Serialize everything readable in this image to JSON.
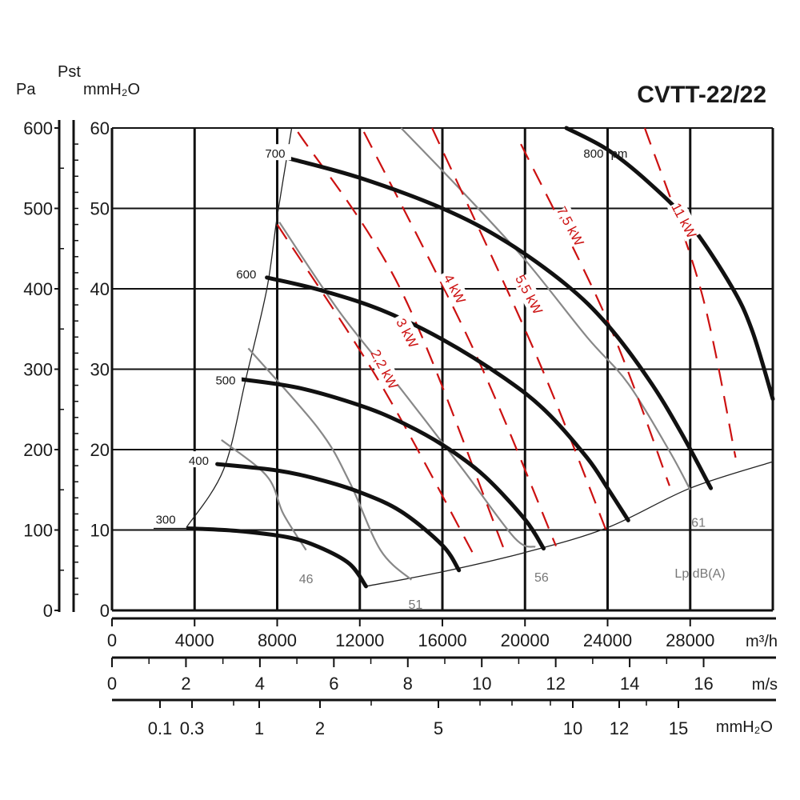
{
  "chart_data": {
    "type": "line",
    "title": "CVTT-22/22",
    "axes": {
      "y_left_pa": {
        "label": "Pa",
        "range": [
          0,
          600
        ],
        "ticks": [
          "0",
          "100",
          "200",
          "300",
          "400",
          "500",
          "600"
        ]
      },
      "y_left_mmh2o": {
        "label": "Pst",
        "unit": "mmH₂O",
        "range": [
          0,
          60
        ],
        "ticks": [
          "0",
          "10",
          "20",
          "30",
          "40",
          "50",
          "60"
        ]
      },
      "x_flow": {
        "unit": "m³/h",
        "range": [
          0,
          32000
        ],
        "ticks": [
          "0",
          "4000",
          "8000",
          "12000",
          "16000",
          "20000",
          "24000",
          "28000"
        ]
      },
      "x_velocity": {
        "unit": "m/s",
        "ticks": [
          "0",
          "2",
          "4",
          "6",
          "8",
          "10",
          "12",
          "14",
          "16"
        ]
      },
      "x_dynamic_pressure": {
        "unit": "mmH₂O",
        "ticks": [
          "0.1",
          "0.3",
          "1",
          "2",
          "5",
          "10",
          "12",
          "15"
        ]
      }
    },
    "grid": true,
    "rpm_curves": [
      {
        "label": "300",
        "points": [
          [
            3700,
            102
          ],
          [
            6000,
            99
          ],
          [
            8500,
            91
          ],
          [
            10000,
            79
          ],
          [
            11500,
            58
          ],
          [
            12300,
            30
          ]
        ]
      },
      {
        "label": "400",
        "points": [
          [
            5100,
            182
          ],
          [
            8000,
            174
          ],
          [
            10000,
            163
          ],
          [
            12000,
            147
          ],
          [
            14000,
            123
          ],
          [
            16000,
            81
          ],
          [
            16800,
            50
          ]
        ]
      },
      {
        "label": "500",
        "points": [
          [
            6100,
            288
          ],
          [
            9000,
            277
          ],
          [
            12000,
            255
          ],
          [
            14000,
            234
          ],
          [
            16000,
            206
          ],
          [
            18000,
            168
          ],
          [
            20000,
            113
          ],
          [
            20900,
            77
          ]
        ]
      },
      {
        "label": "600",
        "points": [
          [
            7500,
            414
          ],
          [
            10000,
            399
          ],
          [
            13000,
            374
          ],
          [
            16000,
            337
          ],
          [
            19000,
            289
          ],
          [
            21000,
            248
          ],
          [
            23000,
            190
          ],
          [
            24000,
            152
          ],
          [
            25000,
            112
          ]
        ]
      },
      {
        "label": "700",
        "points": [
          [
            8600,
            562
          ],
          [
            12000,
            538
          ],
          [
            16000,
            500
          ],
          [
            19000,
            460
          ],
          [
            22000,
            405
          ],
          [
            24000,
            355
          ],
          [
            26000,
            287
          ],
          [
            27500,
            224
          ],
          [
            29000,
            152
          ]
        ]
      },
      {
        "label": "800 rpm",
        "points": [
          [
            22000,
            600
          ],
          [
            24000,
            573
          ],
          [
            26000,
            532
          ],
          [
            28000,
            480
          ],
          [
            30000,
            403
          ],
          [
            31000,
            348
          ],
          [
            32000,
            263
          ]
        ]
      }
    ],
    "power_lines": [
      {
        "label": "2,2 kW",
        "points": [
          [
            8000,
            480
          ],
          [
            13000,
            282
          ],
          [
            17500,
            70
          ]
        ]
      },
      {
        "label": "3 kW",
        "points": [
          [
            9000,
            595
          ],
          [
            14000,
            398
          ],
          [
            19000,
            75
          ]
        ]
      },
      {
        "label": "4 kW",
        "points": [
          [
            12200,
            595
          ],
          [
            17500,
            325
          ],
          [
            21500,
            80
          ]
        ]
      },
      {
        "label": "5,5 kW",
        "points": [
          [
            15500,
            600
          ],
          [
            20500,
            320
          ],
          [
            24000,
            95
          ]
        ]
      },
      {
        "label": "7,5 kW",
        "points": [
          [
            19800,
            580
          ],
          [
            24000,
            360
          ],
          [
            27000,
            155
          ]
        ]
      },
      {
        "label": "11 kW",
        "points": [
          [
            25800,
            600
          ],
          [
            28500,
            400
          ],
          [
            30200,
            190
          ]
        ]
      }
    ],
    "noise_lines": [
      {
        "label": "46",
        "points": [
          [
            5300,
            212
          ],
          [
            7500,
            167
          ],
          [
            8300,
            120
          ],
          [
            9400,
            75
          ]
        ]
      },
      {
        "label": "51",
        "points": [
          [
            6600,
            326
          ],
          [
            10000,
            226
          ],
          [
            11500,
            160
          ],
          [
            13000,
            75
          ],
          [
            14500,
            38
          ]
        ]
      },
      {
        "label": "56",
        "points": [
          [
            8100,
            483
          ],
          [
            11000,
            372
          ],
          [
            14000,
            275
          ],
          [
            17000,
            175
          ],
          [
            19500,
            90
          ],
          [
            20500,
            79
          ]
        ]
      },
      {
        "label": "61",
        "points": [
          [
            14000,
            600
          ],
          [
            17000,
            520
          ],
          [
            20000,
            436
          ],
          [
            23000,
            340
          ],
          [
            25000,
            282
          ],
          [
            27000,
            198
          ],
          [
            28000,
            150
          ]
        ]
      }
    ],
    "noise_unit": "Lp dB(A)",
    "envelope": {
      "left_edge": [
        [
          3600,
          103
        ],
        [
          5400,
          175
        ],
        [
          6500,
          290
        ],
        [
          7500,
          400
        ],
        [
          8000,
          490
        ],
        [
          8700,
          600
        ]
      ],
      "bottom_edge": [
        [
          12300,
          30
        ],
        [
          16000,
          48
        ],
        [
          20000,
          72
        ],
        [
          24000,
          103
        ],
        [
          28000,
          152
        ],
        [
          32000,
          185
        ]
      ]
    }
  }
}
